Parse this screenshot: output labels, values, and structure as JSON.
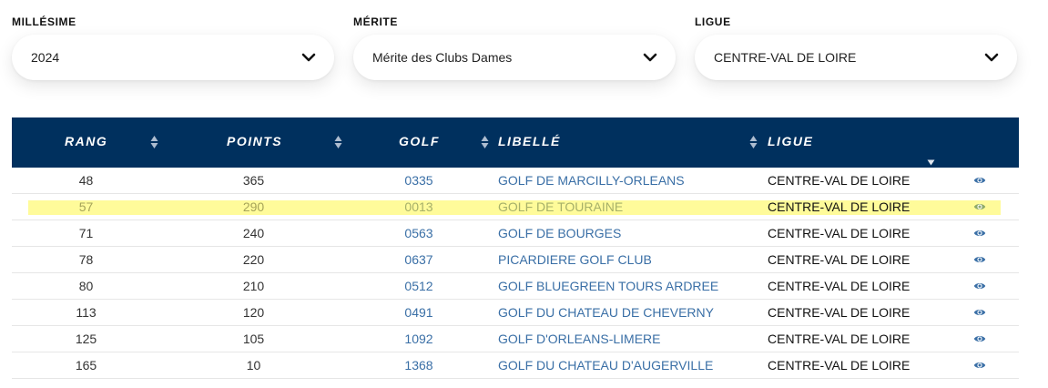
{
  "filters": [
    {
      "label": "MILLÉSIME",
      "value": "2024"
    },
    {
      "label": "MÉRITE",
      "value": "Mérite des Clubs Dames"
    },
    {
      "label": "LIGUE",
      "value": "CENTRE-VAL DE LOIRE"
    }
  ],
  "table": {
    "headers": {
      "rang": "RANG",
      "points": "POINTS",
      "golf": "GOLF",
      "libelle": "LIBELLÉ",
      "ligue": "LIGUE"
    },
    "rows": [
      {
        "rang": "48",
        "points": "365",
        "golf": "0335",
        "libelle": "GOLF DE MARCILLY-ORLEANS",
        "ligue": "CENTRE-VAL DE LOIRE",
        "highlighted": false
      },
      {
        "rang": "57",
        "points": "290",
        "golf": "0013",
        "libelle": "GOLF DE TOURAINE",
        "ligue": "CENTRE-VAL DE LOIRE",
        "highlighted": true
      },
      {
        "rang": "71",
        "points": "240",
        "golf": "0563",
        "libelle": "GOLF DE BOURGES",
        "ligue": "CENTRE-VAL DE LOIRE",
        "highlighted": false
      },
      {
        "rang": "78",
        "points": "220",
        "golf": "0637",
        "libelle": "PICARDIERE GOLF CLUB",
        "ligue": "CENTRE-VAL DE LOIRE",
        "highlighted": false
      },
      {
        "rang": "80",
        "points": "210",
        "golf": "0512",
        "libelle": "GOLF BLUEGREEN TOURS ARDREE",
        "ligue": "CENTRE-VAL DE LOIRE",
        "highlighted": false
      },
      {
        "rang": "113",
        "points": "120",
        "golf": "0491",
        "libelle": "GOLF DU CHATEAU DE CHEVERNY",
        "ligue": "CENTRE-VAL DE LOIRE",
        "highlighted": false
      },
      {
        "rang": "125",
        "points": "105",
        "golf": "1092",
        "libelle": "GOLF D'ORLEANS-LIMERE",
        "ligue": "CENTRE-VAL DE LOIRE",
        "highlighted": false
      },
      {
        "rang": "165",
        "points": "10",
        "golf": "1368",
        "libelle": "GOLF DU CHATEAU D'AUGERVILLE",
        "ligue": "CENTRE-VAL DE LOIRE",
        "highlighted": false
      }
    ]
  },
  "icons": {
    "select": "chevron-down-icon",
    "sort": "sort-icon",
    "column_filter": "filter-triangle-icon",
    "row_action": "eye-icon"
  },
  "colors": {
    "header_bg": "#00305e",
    "link": "#3a6fa6",
    "highlight": "#fffb9a",
    "eye": "#3a6fa6"
  }
}
